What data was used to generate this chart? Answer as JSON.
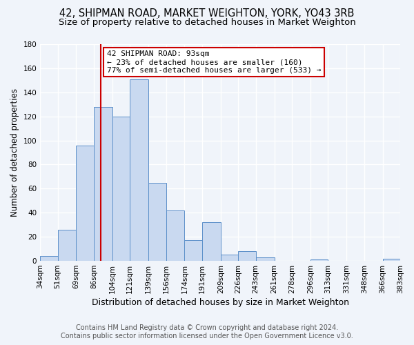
{
  "title1": "42, SHIPMAN ROAD, MARKET WEIGHTON, YORK, YO43 3RB",
  "title2": "Size of property relative to detached houses in Market Weighton",
  "xlabel": "Distribution of detached houses by size in Market Weighton",
  "ylabel": "Number of detached properties",
  "footer1": "Contains HM Land Registry data © Crown copyright and database right 2024.",
  "footer2": "Contains public sector information licensed under the Open Government Licence v3.0.",
  "bin_labels": [
    "34sqm",
    "51sqm",
    "69sqm",
    "86sqm",
    "104sqm",
    "121sqm",
    "139sqm",
    "156sqm",
    "174sqm",
    "191sqm",
    "209sqm",
    "226sqm",
    "243sqm",
    "261sqm",
    "278sqm",
    "296sqm",
    "313sqm",
    "331sqm",
    "348sqm",
    "366sqm",
    "383sqm"
  ],
  "bin_edges": [
    34,
    51,
    69,
    86,
    104,
    121,
    139,
    156,
    174,
    191,
    209,
    226,
    243,
    261,
    278,
    296,
    313,
    331,
    348,
    366,
    383
  ],
  "bar_heights": [
    4,
    26,
    96,
    128,
    120,
    151,
    65,
    42,
    17,
    32,
    5,
    8,
    3,
    0,
    0,
    1,
    0,
    0,
    0,
    2
  ],
  "bar_color": "#c9d9f0",
  "bar_edgecolor": "#5b8fc9",
  "property_value": 93,
  "vline_color": "#cc0000",
  "annotation_line1": "42 SHIPMAN ROAD: 93sqm",
  "annotation_line2": "← 23% of detached houses are smaller (160)",
  "annotation_line3": "77% of semi-detached houses are larger (533) →",
  "annotation_box_edgecolor": "#cc0000",
  "annotation_box_facecolor": "#ffffff",
  "ylim": [
    0,
    180
  ],
  "yticks": [
    0,
    20,
    40,
    60,
    80,
    100,
    120,
    140,
    160,
    180
  ],
  "bg_color": "#f0f4fa",
  "grid_color": "#ffffff",
  "title1_fontsize": 10.5,
  "title2_fontsize": 9.5,
  "xlabel_fontsize": 9,
  "ylabel_fontsize": 8.5,
  "footer_fontsize": 7,
  "tick_fontsize": 7.5
}
